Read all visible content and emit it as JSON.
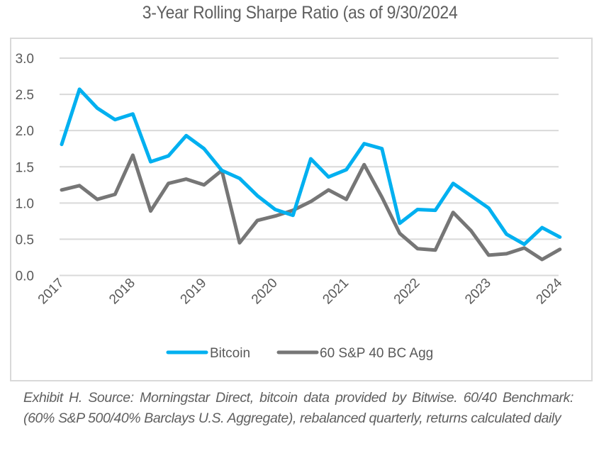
{
  "chart_data": {
    "type": "line",
    "title": "3-Year Rolling Sharpe Ratio (as of 9/30/2024",
    "xlabel": "",
    "ylabel": "",
    "ylim": [
      0,
      3
    ],
    "yticks": [
      "0.0",
      "0.5",
      "1.0",
      "1.5",
      "2.0",
      "2.5",
      "3.0"
    ],
    "ytick_values": [
      0,
      0.5,
      1.0,
      1.5,
      2.0,
      2.5,
      3.0
    ],
    "xtick_labels": [
      "2017",
      "2018",
      "2019",
      "2020",
      "2021",
      "2022",
      "2023",
      "2024"
    ],
    "x_points_per_year": 4,
    "grid": true,
    "legend_position": "bottom",
    "series": [
      {
        "name": "Bitcoin",
        "color": "#00b0f0",
        "values": [
          1.81,
          2.57,
          2.31,
          2.15,
          2.23,
          1.57,
          1.65,
          1.93,
          1.75,
          1.45,
          1.34,
          1.1,
          0.91,
          0.83,
          1.61,
          1.36,
          1.46,
          1.82,
          1.75,
          0.72,
          0.91,
          0.9,
          1.27,
          1.1,
          0.93,
          0.57,
          0.43,
          0.66,
          0.53
        ]
      },
      {
        "name": "60 S&P 40 BC Agg",
        "color": "#767676",
        "values": [
          1.18,
          1.24,
          1.05,
          1.12,
          1.66,
          0.89,
          1.27,
          1.33,
          1.25,
          1.45,
          0.45,
          0.76,
          0.82,
          0.9,
          1.02,
          1.18,
          1.05,
          1.53,
          1.08,
          0.58,
          0.37,
          0.35,
          0.87,
          0.62,
          0.28,
          0.3,
          0.38,
          0.22,
          0.36
        ]
      }
    ]
  },
  "caption": "Exhibit H. Source: Morningstar Direct, bitcoin data provided by Bitwise. 60/40 Benchmark: (60% S&P 500/40% Barclays U.S. Aggregate), rebalanced quarterly, returns calculated daily",
  "colors": {
    "gridline": "#d9d9d9",
    "axis_text": "#595959"
  }
}
